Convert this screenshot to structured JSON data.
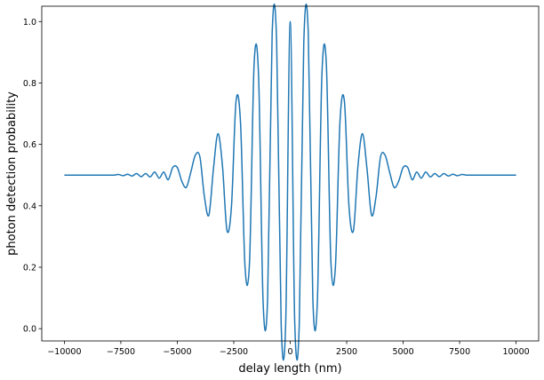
{
  "chart_data": {
    "type": "line",
    "title": "",
    "xlabel": "delay length (nm)",
    "ylabel": "photon detection probability",
    "xlim": [
      -11000,
      11000
    ],
    "ylim": [
      -0.04,
      1.05
    ],
    "xticks": [
      -10000,
      -7500,
      -5000,
      -2500,
      0,
      2500,
      5000,
      7500,
      10000
    ],
    "xtick_labels": [
      "−10000",
      "−7500",
      "−5000",
      "−2500",
      "0",
      "2500",
      "5000",
      "7500",
      "10000"
    ],
    "yticks": [
      0.0,
      0.2,
      0.4,
      0.6,
      0.8,
      1.0
    ],
    "ytick_labels": [
      "0.0",
      "0.2",
      "0.4",
      "0.6",
      "0.8",
      "1.0"
    ],
    "grid": false,
    "series": [
      {
        "color": "#1f77b4",
        "x": [
          -10000,
          -9600,
          -9200,
          -8800,
          -8400,
          -8000,
          -7800,
          -7600,
          -7400,
          -7200,
          -7000,
          -6800,
          -6600,
          -6400,
          -6200,
          -6000,
          -5800,
          -5600,
          -5400,
          -5200,
          -5000,
          -4800,
          -4600,
          -4400,
          -4200,
          -4000,
          -3800,
          -3600,
          -3400,
          -3200,
          -3000,
          -2800,
          -2600,
          -2400,
          -2200,
          -2000,
          -1800,
          -1600,
          -1400,
          -1200,
          -1000,
          -800,
          -600,
          -400,
          -200,
          0,
          200,
          400,
          600,
          800,
          1000,
          1200,
          1400,
          1600,
          1800,
          2000,
          2200,
          2400,
          2600,
          2800,
          3000,
          3200,
          3400,
          3600,
          3800,
          4000,
          4200,
          4400,
          4600,
          4800,
          5000,
          5200,
          5400,
          5600,
          5800,
          6000,
          6200,
          6400,
          6600,
          6800,
          7000,
          7200,
          7400,
          7600,
          7800,
          8000,
          8400,
          8800,
          9200,
          9600,
          10000
        ],
        "y": [
          0.5,
          0.5,
          0.5,
          0.5,
          0.5,
          0.5,
          0.5,
          0.502,
          0.498,
          0.503,
          0.497,
          0.505,
          0.495,
          0.505,
          0.494,
          0.51,
          0.49,
          0.51,
          0.485,
          0.525,
          0.525,
          0.48,
          0.46,
          0.51,
          0.565,
          0.56,
          0.43,
          0.37,
          0.52,
          0.635,
          0.53,
          0.32,
          0.4,
          0.74,
          0.67,
          0.2,
          0.22,
          0.86,
          0.82,
          0.085,
          0.1,
          0.96,
          0.93,
          0.012,
          0.02,
          1.0,
          0.02,
          0.012,
          0.93,
          0.96,
          0.1,
          0.085,
          0.82,
          0.86,
          0.22,
          0.2,
          0.67,
          0.74,
          0.4,
          0.32,
          0.53,
          0.635,
          0.52,
          0.37,
          0.43,
          0.56,
          0.565,
          0.51,
          0.46,
          0.48,
          0.525,
          0.525,
          0.485,
          0.51,
          0.49,
          0.51,
          0.494,
          0.505,
          0.495,
          0.505,
          0.497,
          0.503,
          0.498,
          0.502,
          0.5,
          0.5,
          0.5,
          0.5,
          0.5,
          0.5,
          0.5
        ]
      }
    ]
  }
}
